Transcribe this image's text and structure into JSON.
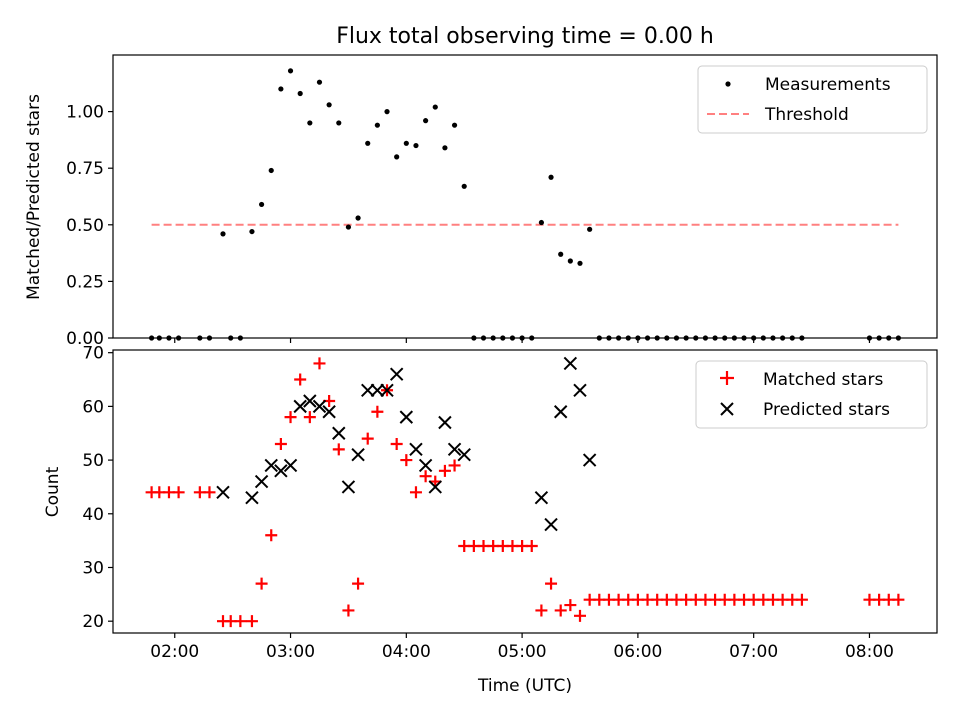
{
  "chart_data": [
    {
      "type": "scatter",
      "title": "Flux total observing time = 0.00 h",
      "xlabel": "",
      "ylabel": "Matched/Predicted stars",
      "xlim": [
        "01:28",
        "08:35"
      ],
      "ylim": [
        0,
        1.25
      ],
      "xticks": [
        "02:00",
        "03:00",
        "04:00",
        "05:00",
        "06:00",
        "07:00",
        "08:00"
      ],
      "xtick_labels_shown": false,
      "yticks": [
        0.0,
        0.25,
        0.5,
        0.75,
        1.0
      ],
      "ytick_labels": [
        "0.00",
        "0.25",
        "0.50",
        "0.75",
        "1.00"
      ],
      "legend": {
        "position": "top-right",
        "entries": [
          "Measurements",
          "Threshold"
        ]
      },
      "threshold": {
        "name": "Threshold",
        "y": 0.5,
        "x_range": [
          "01:48",
          "08:15"
        ],
        "color": "#ff8080",
        "style": "dashed"
      },
      "series": [
        {
          "name": "Measurements",
          "color": "#000000",
          "marker": "dot",
          "points": [
            [
              "01:48",
              0
            ],
            [
              "01:52",
              0
            ],
            [
              "01:57",
              0
            ],
            [
              "02:02",
              0
            ],
            [
              "02:13",
              0
            ],
            [
              "02:18",
              0
            ],
            [
              "02:25",
              0.46
            ],
            [
              "02:29",
              0
            ],
            [
              "02:34",
              0
            ],
            [
              "02:40",
              0.47
            ],
            [
              "02:45",
              0.59
            ],
            [
              "02:50",
              0.74
            ],
            [
              "02:55",
              1.1
            ],
            [
              "03:00",
              1.18
            ],
            [
              "03:05",
              1.08
            ],
            [
              "03:10",
              0.95
            ],
            [
              "03:15",
              1.13
            ],
            [
              "03:20",
              1.03
            ],
            [
              "03:25",
              0.95
            ],
            [
              "03:30",
              0.49
            ],
            [
              "03:35",
              0.53
            ],
            [
              "03:40",
              0.86
            ],
            [
              "03:45",
              0.94
            ],
            [
              "03:50",
              1.0
            ],
            [
              "03:55",
              0.8
            ],
            [
              "04:00",
              0.86
            ],
            [
              "04:05",
              0.85
            ],
            [
              "04:10",
              0.96
            ],
            [
              "04:15",
              1.02
            ],
            [
              "04:20",
              0.84
            ],
            [
              "04:25",
              0.94
            ],
            [
              "04:30",
              0.67
            ],
            [
              "04:35",
              0
            ],
            [
              "04:40",
              0
            ],
            [
              "04:45",
              0
            ],
            [
              "04:50",
              0
            ],
            [
              "04:55",
              0
            ],
            [
              "05:00",
              0
            ],
            [
              "05:05",
              0
            ],
            [
              "05:10",
              0.51
            ],
            [
              "05:15",
              0.71
            ],
            [
              "05:20",
              0.37
            ],
            [
              "05:25",
              0.34
            ],
            [
              "05:30",
              0.33
            ],
            [
              "05:35",
              0.48
            ],
            [
              "05:40",
              0
            ],
            [
              "05:45",
              0
            ],
            [
              "05:50",
              0
            ],
            [
              "05:55",
              0
            ],
            [
              "06:00",
              0
            ],
            [
              "06:05",
              0
            ],
            [
              "06:10",
              0
            ],
            [
              "06:15",
              0
            ],
            [
              "06:20",
              0
            ],
            [
              "06:25",
              0
            ],
            [
              "06:30",
              0
            ],
            [
              "06:35",
              0
            ],
            [
              "06:40",
              0
            ],
            [
              "06:45",
              0
            ],
            [
              "06:50",
              0
            ],
            [
              "06:55",
              0
            ],
            [
              "07:00",
              0
            ],
            [
              "07:05",
              0
            ],
            [
              "07:10",
              0
            ],
            [
              "07:15",
              0
            ],
            [
              "07:20",
              0
            ],
            [
              "07:25",
              0
            ],
            [
              "08:00",
              0
            ],
            [
              "08:05",
              0
            ],
            [
              "08:10",
              0
            ],
            [
              "08:15",
              0
            ]
          ]
        }
      ]
    },
    {
      "type": "scatter",
      "title": "",
      "xlabel": "Time (UTC)",
      "ylabel": "Count",
      "xlim": [
        "01:28",
        "08:35"
      ],
      "ylim": [
        17.8,
        70.5
      ],
      "xticks": [
        "02:00",
        "03:00",
        "04:00",
        "05:00",
        "06:00",
        "07:00",
        "08:00"
      ],
      "xtick_labels": [
        "02:00",
        "03:00",
        "04:00",
        "05:00",
        "06:00",
        "07:00",
        "08:00"
      ],
      "yticks": [
        20,
        30,
        40,
        50,
        60,
        70
      ],
      "ytick_labels": [
        "20",
        "30",
        "40",
        "50",
        "60",
        "70"
      ],
      "legend": {
        "position": "top-right",
        "entries": [
          "Matched stars",
          "Predicted stars"
        ]
      },
      "series": [
        {
          "name": "Matched stars",
          "color": "#ff0000",
          "marker": "plus",
          "points": [
            [
              "01:48",
              44
            ],
            [
              "01:52",
              44
            ],
            [
              "01:57",
              44
            ],
            [
              "02:02",
              44
            ],
            [
              "02:13",
              44
            ],
            [
              "02:18",
              44
            ],
            [
              "02:25",
              20
            ],
            [
              "02:29",
              20
            ],
            [
              "02:34",
              20
            ],
            [
              "02:40",
              20
            ],
            [
              "02:45",
              27
            ],
            [
              "02:50",
              36
            ],
            [
              "02:55",
              53
            ],
            [
              "03:00",
              58
            ],
            [
              "03:05",
              65
            ],
            [
              "03:10",
              58
            ],
            [
              "03:15",
              68
            ],
            [
              "03:20",
              61
            ],
            [
              "03:25",
              52
            ],
            [
              "03:30",
              22
            ],
            [
              "03:35",
              27
            ],
            [
              "03:40",
              54
            ],
            [
              "03:45",
              59
            ],
            [
              "03:50",
              63
            ],
            [
              "03:55",
              53
            ],
            [
              "04:00",
              50
            ],
            [
              "04:05",
              44
            ],
            [
              "04:10",
              47
            ],
            [
              "04:15",
              46
            ],
            [
              "04:20",
              48
            ],
            [
              "04:25",
              49
            ],
            [
              "04:30",
              34
            ],
            [
              "04:35",
              34
            ],
            [
              "04:40",
              34
            ],
            [
              "04:45",
              34
            ],
            [
              "04:50",
              34
            ],
            [
              "04:55",
              34
            ],
            [
              "05:00",
              34
            ],
            [
              "05:05",
              34
            ],
            [
              "05:10",
              22
            ],
            [
              "05:15",
              27
            ],
            [
              "05:20",
              22
            ],
            [
              "05:25",
              23
            ],
            [
              "05:30",
              21
            ],
            [
              "05:35",
              24
            ],
            [
              "05:40",
              24
            ],
            [
              "05:45",
              24
            ],
            [
              "05:50",
              24
            ],
            [
              "05:55",
              24
            ],
            [
              "06:00",
              24
            ],
            [
              "06:05",
              24
            ],
            [
              "06:10",
              24
            ],
            [
              "06:15",
              24
            ],
            [
              "06:20",
              24
            ],
            [
              "06:25",
              24
            ],
            [
              "06:30",
              24
            ],
            [
              "06:35",
              24
            ],
            [
              "06:40",
              24
            ],
            [
              "06:45",
              24
            ],
            [
              "06:50",
              24
            ],
            [
              "06:55",
              24
            ],
            [
              "07:00",
              24
            ],
            [
              "07:05",
              24
            ],
            [
              "07:10",
              24
            ],
            [
              "07:15",
              24
            ],
            [
              "07:20",
              24
            ],
            [
              "07:25",
              24
            ],
            [
              "08:00",
              24
            ],
            [
              "08:05",
              24
            ],
            [
              "08:10",
              24
            ],
            [
              "08:15",
              24
            ]
          ]
        },
        {
          "name": "Predicted stars",
          "color": "#000000",
          "marker": "x",
          "points": [
            [
              "02:25",
              44
            ],
            [
              "02:40",
              43
            ],
            [
              "02:45",
              46
            ],
            [
              "02:50",
              49
            ],
            [
              "02:55",
              48
            ],
            [
              "03:00",
              49
            ],
            [
              "03:05",
              60
            ],
            [
              "03:10",
              61
            ],
            [
              "03:15",
              60
            ],
            [
              "03:20",
              59
            ],
            [
              "03:25",
              55
            ],
            [
              "03:30",
              45
            ],
            [
              "03:35",
              51
            ],
            [
              "03:40",
              63
            ],
            [
              "03:45",
              63
            ],
            [
              "03:50",
              63
            ],
            [
              "03:55",
              66
            ],
            [
              "04:00",
              58
            ],
            [
              "04:05",
              52
            ],
            [
              "04:10",
              49
            ],
            [
              "04:15",
              45
            ],
            [
              "04:20",
              57
            ],
            [
              "04:25",
              52
            ],
            [
              "04:30",
              51
            ],
            [
              "05:10",
              43
            ],
            [
              "05:15",
              38
            ],
            [
              "05:20",
              59
            ],
            [
              "05:25",
              68
            ],
            [
              "05:30",
              63
            ],
            [
              "05:35",
              50
            ]
          ]
        }
      ]
    }
  ]
}
